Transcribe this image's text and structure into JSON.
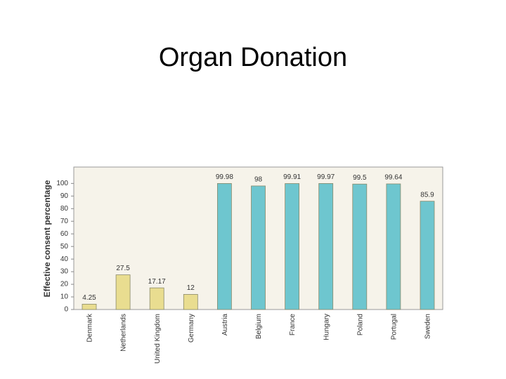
{
  "chart_data": {
    "type": "bar",
    "title": "Organ Donation",
    "ylabel": "Effective consent percentage",
    "categories": [
      "Denmark",
      "Netherlands",
      "United Kingdom",
      "Germany",
      "Austria",
      "Belgium",
      "France",
      "Hungary",
      "Poland",
      "Portugal",
      "Sweden"
    ],
    "values": [
      4.25,
      27.5,
      17.17,
      12,
      99.98,
      98,
      99.91,
      99.97,
      99.5,
      99.64,
      85.9
    ],
    "colors": [
      "#e9dd90",
      "#e9dd90",
      "#e9dd90",
      "#e9dd90",
      "#6ec6cf",
      "#6ec6cf",
      "#6ec6cf",
      "#6ec6cf",
      "#6ec6cf",
      "#6ec6cf",
      "#6ec6cf"
    ],
    "ylim": [
      0,
      113
    ],
    "yticks": [
      0,
      10,
      20,
      30,
      40,
      50,
      60,
      70,
      80,
      90,
      100
    ],
    "grid": false
  }
}
